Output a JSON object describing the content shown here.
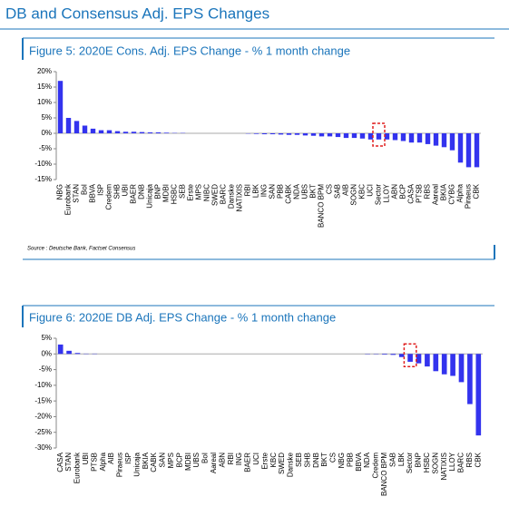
{
  "title": "DB and Consensus Adj. EPS Changes",
  "source": "Source : Deutsche Bank, Factset Consensus",
  "chart_data": [
    {
      "type": "bar",
      "title": "Figure 5: 2020E Cons. Adj. EPS Change - % 1 month change",
      "color": "#3333ee",
      "highlight": 39,
      "categories": [
        "NBG",
        "Eurobank",
        "STAN",
        "BoI",
        "BBVA",
        "ISP",
        "Credem",
        "SHB",
        "UBI",
        "BAER",
        "DNB",
        "Unicaja",
        "BNP",
        "MDBI",
        "HSBC",
        "SEB",
        "Erste",
        "MPS",
        "NIBC",
        "SWED",
        "BARC",
        "Danske",
        "NATIXIS",
        "RBI",
        "LBK",
        "ING",
        "SAN",
        "PBB",
        "CABK",
        "NDA",
        "UBS",
        "BKT",
        "BANCO BPM",
        "CS",
        "SAB",
        "AIB",
        "SOGN",
        "KBC",
        "UCI",
        "Sector",
        "LLOY",
        "ABN",
        "BCP",
        "CASA",
        "PTSB",
        "RBS",
        "Aareal",
        "BKIA",
        "CYBG",
        "Alpha",
        "Piraeus",
        "CBK"
      ],
      "values": [
        17,
        5,
        4,
        2.5,
        1.5,
        1,
        1,
        0.7,
        0.5,
        0.5,
        0.4,
        0.3,
        0.3,
        0.2,
        0.1,
        0.1,
        0,
        0,
        0,
        0,
        0,
        0,
        0,
        -0.1,
        -0.2,
        -0.3,
        -0.3,
        -0.4,
        -0.5,
        -0.5,
        -0.7,
        -0.8,
        -1,
        -1,
        -1.2,
        -1.5,
        -1.5,
        -1.7,
        -2,
        -2,
        -2,
        -2.2,
        -2.5,
        -3,
        -3,
        -3.5,
        -4,
        -4.5,
        -5.5,
        -9.5,
        -11,
        -11
      ],
      "ylim": [
        -15,
        20
      ],
      "yticks": [
        {
          "value": 20,
          "label": "20%"
        },
        {
          "value": 15,
          "label": "15%"
        },
        {
          "value": 10,
          "label": "10%"
        },
        {
          "value": 5,
          "label": "5%"
        },
        {
          "value": 0,
          "label": "0%"
        },
        {
          "value": -5,
          "label": "-5%"
        },
        {
          "value": -10,
          "label": "-10%"
        },
        {
          "value": -15,
          "label": "-15%"
        }
      ]
    },
    {
      "type": "bar",
      "title": "Figure 6: 2020E DB Adj. EPS Change - % 1 month change",
      "color": "#3333ee",
      "highlight": 41,
      "categories": [
        "CASA",
        "STAN",
        "Eurobank",
        "UBI",
        "PTSB",
        "Alpha",
        "AIB",
        "Piraeus",
        "ISP",
        "Unicaja",
        "BKIA",
        "CABK",
        "SAN",
        "MPS",
        "BCP",
        "MDBI",
        "UBS",
        "BoI",
        "Aareal",
        "ABN",
        "RBI",
        "ING",
        "BAER",
        "UCI",
        "Erste",
        "KBC",
        "SWED",
        "Danske",
        "SEB",
        "SHB",
        "DNB",
        "BKT",
        "CS",
        "NBG",
        "PBB",
        "BBVA",
        "NDA",
        "Credem",
        "BANCO BPM",
        "SAB",
        "LBK",
        "Sector",
        "BNP",
        "HSBC",
        "SOGN",
        "NATIXIS",
        "LLOY",
        "BARC",
        "RBS",
        "CBK"
      ],
      "values": [
        3,
        1,
        0.3,
        0.1,
        0.1,
        0,
        0,
        0,
        0,
        0,
        0,
        0,
        0,
        0,
        0,
        0,
        0,
        0,
        0,
        0,
        0,
        0,
        0,
        0,
        0,
        0,
        0,
        0,
        0,
        0,
        0,
        0,
        0,
        0,
        0,
        0,
        -0.1,
        -0.1,
        -0.2,
        -0.3,
        -1,
        -2.5,
        -3,
        -4,
        -5.5,
        -6.5,
        -7,
        -9,
        -16,
        -26
      ],
      "ylim": [
        -30,
        5
      ],
      "yticks": [
        {
          "value": 5,
          "label": "5%"
        },
        {
          "value": 0,
          "label": "0%"
        },
        {
          "value": -5,
          "label": "-5%"
        },
        {
          "value": -10,
          "label": "-10%"
        },
        {
          "value": -15,
          "label": "-15%"
        },
        {
          "value": -20,
          "label": "-20%"
        },
        {
          "value": -25,
          "label": "-25%"
        },
        {
          "value": -30,
          "label": "-30%"
        }
      ]
    }
  ]
}
